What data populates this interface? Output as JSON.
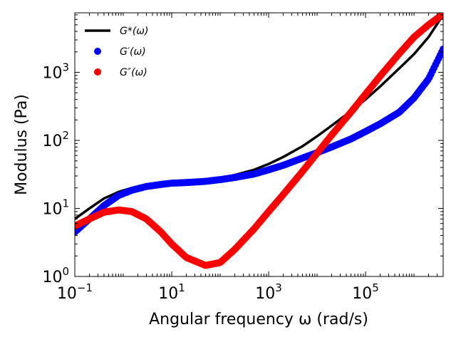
{
  "chart_data": {
    "type": "scatter",
    "title": "",
    "xlabel": "Angular frequency ω (rad/s)",
    "ylabel": "Modulus (Pa)",
    "xscale": "log",
    "yscale": "log",
    "xlim": [
      0.1,
      4000000
    ],
    "ylim": [
      1,
      7500
    ],
    "grid": false,
    "legend_position": "top-left",
    "x_tick_labels": [
      {
        "value": 0.1,
        "base": "10",
        "exp": "−1"
      },
      {
        "value": 10,
        "base": "10",
        "exp": "1"
      },
      {
        "value": 1000,
        "base": "10",
        "exp": "3"
      },
      {
        "value": 100000,
        "base": "10",
        "exp": "5"
      }
    ],
    "y_tick_labels": [
      {
        "value": 1,
        "base": "10",
        "exp": "0"
      },
      {
        "value": 10,
        "base": "10",
        "exp": "1"
      },
      {
        "value": 100,
        "base": "10",
        "exp": "2"
      },
      {
        "value": 1000,
        "base": "10",
        "exp": "3"
      }
    ],
    "series": [
      {
        "name": "G*(ω)",
        "style": "line",
        "color": "#000000",
        "points": [
          [
            0.1,
            7.0
          ],
          [
            0.2,
            10.0
          ],
          [
            0.4,
            14.0
          ],
          [
            0.8,
            17.5
          ],
          [
            1.5,
            20.0
          ],
          [
            3,
            22.5
          ],
          [
            6,
            24.0
          ],
          [
            10,
            24.8
          ],
          [
            20,
            25.5
          ],
          [
            50,
            26.5
          ],
          [
            100,
            28.0
          ],
          [
            200,
            31.0
          ],
          [
            500,
            37.0
          ],
          [
            1000,
            45.0
          ],
          [
            2000,
            57.0
          ],
          [
            5000,
            82.0
          ],
          [
            10000,
            115.0
          ],
          [
            20000,
            165.0
          ],
          [
            50000,
            270.0
          ],
          [
            100000,
            400.0
          ],
          [
            200000,
            620.0
          ],
          [
            500000,
            1150.0
          ],
          [
            1000000,
            1850.0
          ],
          [
            2000000,
            3300.0
          ],
          [
            4000000,
            7000.0
          ]
        ]
      },
      {
        "name": "G′(ω)",
        "style": "markers",
        "color": "#0000ff",
        "points": [
          [
            0.1,
            4.5
          ],
          [
            0.2,
            7.0
          ],
          [
            0.4,
            11.0
          ],
          [
            0.8,
            15.5
          ],
          [
            1.5,
            18.5
          ],
          [
            3,
            21.0
          ],
          [
            6,
            22.5
          ],
          [
            10,
            23.5
          ],
          [
            20,
            24.0
          ],
          [
            50,
            25.0
          ],
          [
            100,
            26.5
          ],
          [
            200,
            28.5
          ],
          [
            500,
            32.0
          ],
          [
            1000,
            37.0
          ],
          [
            2000,
            43.0
          ],
          [
            5000,
            55.0
          ],
          [
            10000,
            66.0
          ],
          [
            20000,
            80.0
          ],
          [
            50000,
            105.0
          ],
          [
            100000,
            135.0
          ],
          [
            200000,
            175.0
          ],
          [
            500000,
            260.0
          ],
          [
            1000000,
            420.0
          ],
          [
            2000000,
            800.0
          ],
          [
            4000000,
            2200.0
          ]
        ]
      },
      {
        "name": "G″(ω)",
        "style": "markers",
        "color": "#ff0000",
        "points": [
          [
            0.1,
            5.5
          ],
          [
            0.2,
            7.0
          ],
          [
            0.4,
            8.8
          ],
          [
            0.8,
            9.5
          ],
          [
            1.5,
            9.0
          ],
          [
            3,
            7.0
          ],
          [
            6,
            4.5
          ],
          [
            10,
            3.0
          ],
          [
            20,
            1.9
          ],
          [
            50,
            1.45
          ],
          [
            100,
            1.6
          ],
          [
            200,
            2.5
          ],
          [
            500,
            5.0
          ],
          [
            1000,
            9.0
          ],
          [
            2000,
            16.0
          ],
          [
            5000,
            35.0
          ],
          [
            10000,
            65.0
          ],
          [
            20000,
            120.0
          ],
          [
            50000,
            260.0
          ],
          [
            100000,
            480.0
          ],
          [
            200000,
            880.0
          ],
          [
            500000,
            1900.0
          ],
          [
            1000000,
            3300.0
          ],
          [
            2000000,
            5000.0
          ],
          [
            4000000,
            7200.0
          ]
        ]
      }
    ]
  }
}
